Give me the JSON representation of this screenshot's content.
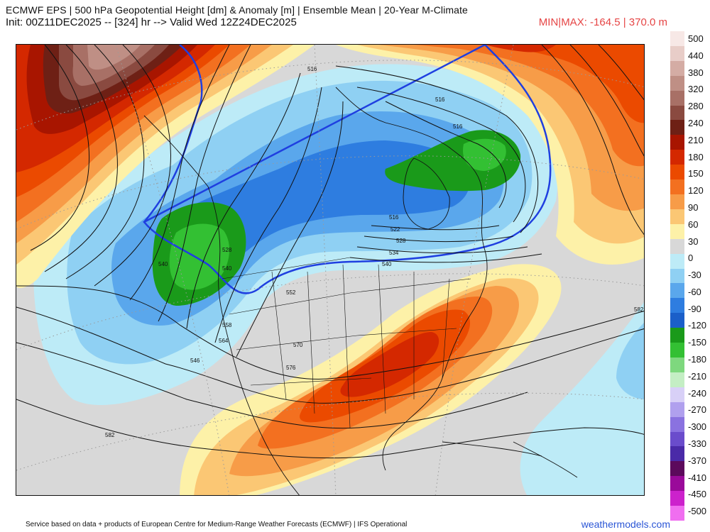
{
  "header": {
    "title_line1": "ECMWF EPS | 500 hPa Geopotential Height [dm] & Anomaly [m] | Ensemble Mean | 20-Year M-Climate",
    "title_line2": "Init: 00Z11DEC2025 -- [324] hr --> Valid Wed 12Z24DEC2025",
    "minmax": "MIN|MAX: -164.5 | 370.0 m"
  },
  "footer": {
    "credit": "Service based on data + products of European Centre for Medium-Range Weather Forecasts (ECMWF) | IFS Operational",
    "site": "weathermodels.com"
  },
  "legend": {
    "labels": [
      "500",
      "440",
      "380",
      "320",
      "280",
      "240",
      "210",
      "180",
      "150",
      "120",
      "90",
      "60",
      "30",
      "0",
      "-30",
      "-60",
      "-90",
      "-120",
      "-150",
      "-180",
      "-210",
      "-240",
      "-270",
      "-300",
      "-330",
      "-370",
      "-410",
      "-450",
      "-500"
    ],
    "colors": [
      "#f7e8e6",
      "#e8cdc8",
      "#d4aca4",
      "#bf8f85",
      "#a87066",
      "#8a4a40",
      "#6e2015",
      "#a81500",
      "#d42800",
      "#eb4a00",
      "#f37020",
      "#f79c48",
      "#fbc774",
      "#fdf1a8",
      "#d8d8d8",
      "#bdebf7",
      "#8fd0f3",
      "#5aa7ec",
      "#2e7de0",
      "#1b5fc9",
      "#1a9a1a",
      "#33c033",
      "#7ed87e",
      "#c4eec4",
      "#d8d0f7",
      "#b0a0ee",
      "#8a72e0",
      "#6a4ccc",
      "#4a2aa8",
      "#5c0a5c",
      "#9a0a9a",
      "#cc22cc",
      "#f06ef0"
    ]
  },
  "map": {
    "contour_labels": [
      "516",
      "516",
      "516",
      "516",
      "522",
      "528",
      "534",
      "540",
      "540",
      "540",
      "546",
      "552",
      "558",
      "564",
      "570",
      "576",
      "582",
      "582",
      "528"
    ]
  }
}
